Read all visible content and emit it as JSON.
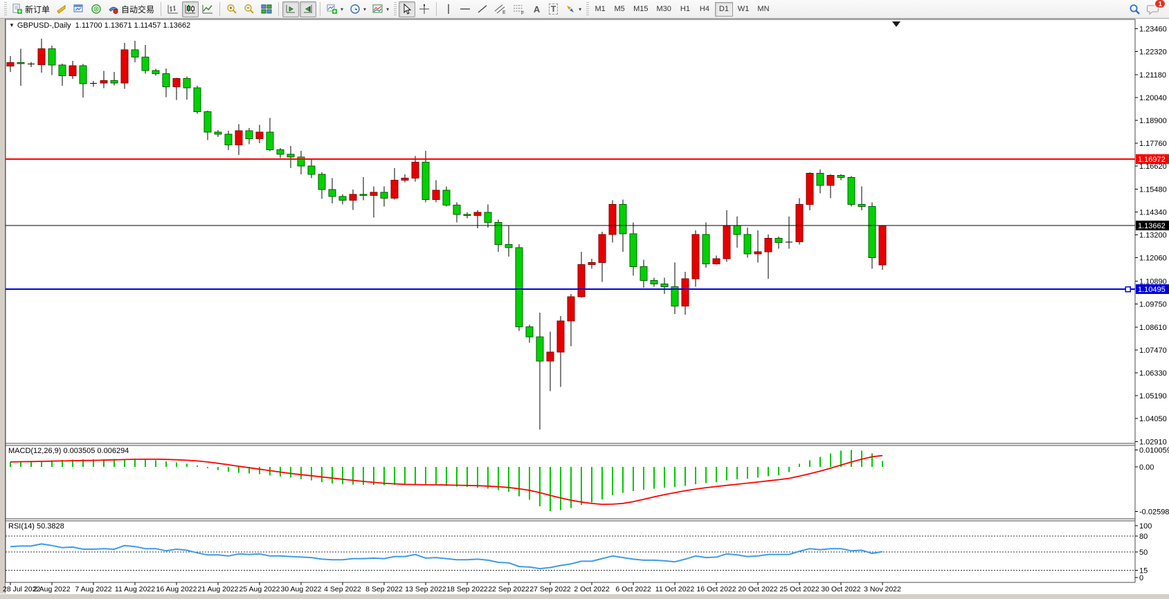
{
  "toolbar": {
    "new_order": "新订单",
    "autotrading": "自动交易",
    "text_tool": "A",
    "label_tool": "T",
    "channel_sub": "E",
    "fibo_sub": "F",
    "timeframes": [
      "M1",
      "M5",
      "M15",
      "M30",
      "H1",
      "H4",
      "D1",
      "W1",
      "MN"
    ],
    "active_timeframe": "D1",
    "notification_count": "1"
  },
  "chart_data": {
    "type": "candlestick",
    "symbol": "GBPUSD-",
    "period": "Daily",
    "title": "GBPUSD-,Daily",
    "ohlc_text": "1.11700 1.13671 1.11457 1.13662",
    "price_axis_labels": [
      "1.23460",
      "1.22320",
      "1.21180",
      "1.20040",
      "1.18900",
      "1.17760",
      "1.16620",
      "1.15480",
      "1.14340",
      "1.13200",
      "1.12060",
      "1.10890",
      "1.09750",
      "1.08610",
      "1.07470",
      "1.06330",
      "1.05190",
      "1.04050",
      "1.02910"
    ],
    "price_range": {
      "top": 1.2393,
      "bottom": 1.0285
    },
    "dates": [
      "28 Jul 2022",
      "2 Aug 2022",
      "7 Aug 2022",
      "11 Aug 2022",
      "16 Aug 2022",
      "21 Aug 2022",
      "25 Aug 2022",
      "30 Aug 2022",
      "4 Sep 2022",
      "8 Sep 2022",
      "13 Sep 2022",
      "18 Sep 2022",
      "22 Sep 2022",
      "27 Sep 2022",
      "2 Oct 2022",
      "6 Oct 2022",
      "11 Oct 2022",
      "16 Oct 2022",
      "20 Oct 2022",
      "25 Oct 2022",
      "30 Oct 2022",
      "3 Nov 2022"
    ],
    "bars_per_label": 4,
    "candles": [
      [
        1.216,
        1.221,
        1.2132,
        1.2178
      ],
      [
        1.2178,
        1.2246,
        1.2062,
        1.2172
      ],
      [
        1.2172,
        1.2182,
        1.2155,
        1.2168
      ],
      [
        1.2168,
        1.2297,
        1.2127,
        1.2246
      ],
      [
        1.2246,
        1.2262,
        1.2115,
        1.2166
      ],
      [
        1.2166,
        1.2172,
        1.2062,
        1.2112
      ],
      [
        1.2112,
        1.2186,
        1.2096,
        1.2162
      ],
      [
        1.2162,
        1.217,
        1.2003,
        1.2072
      ],
      [
        1.2072,
        1.2086,
        1.2058,
        1.2076
      ],
      [
        1.2076,
        1.2136,
        1.205,
        1.2088
      ],
      [
        1.2088,
        1.2132,
        1.2064,
        1.2076
      ],
      [
        1.2076,
        1.2276,
        1.2046,
        1.2242
      ],
      [
        1.2242,
        1.2286,
        1.218,
        1.2206
      ],
      [
        1.2206,
        1.2266,
        1.2122,
        1.2138
      ],
      [
        1.2138,
        1.2146,
        1.2112,
        1.2122
      ],
      [
        1.2122,
        1.2149,
        1.2006,
        1.2058
      ],
      [
        1.2058,
        1.2102,
        1.1992,
        1.2098
      ],
      [
        1.2098,
        1.2108,
        1.1994,
        1.2052
      ],
      [
        1.2052,
        1.2062,
        1.1922,
        1.1934
      ],
      [
        1.1934,
        1.1938,
        1.1792,
        1.1832
      ],
      [
        1.1832,
        1.1842,
        1.1808,
        1.1822
      ],
      [
        1.1822,
        1.1838,
        1.1742,
        1.1768
      ],
      [
        1.1768,
        1.1872,
        1.1718,
        1.1838
      ],
      [
        1.1838,
        1.1852,
        1.1772,
        1.1798
      ],
      [
        1.1798,
        1.1868,
        1.1776,
        1.1832
      ],
      [
        1.1832,
        1.1902,
        1.1736,
        1.1744
      ],
      [
        1.1744,
        1.1752,
        1.1702,
        1.1722
      ],
      [
        1.1722,
        1.1762,
        1.1652,
        1.1708
      ],
      [
        1.1708,
        1.1738,
        1.1622,
        1.1662
      ],
      [
        1.1662,
        1.1696,
        1.1602,
        1.1622
      ],
      [
        1.1622,
        1.1632,
        1.15,
        1.1546
      ],
      [
        1.1546,
        1.1602,
        1.1476,
        1.1512
      ],
      [
        1.1512,
        1.1522,
        1.1472,
        1.1492
      ],
      [
        1.1492,
        1.1546,
        1.1444,
        1.1522
      ],
      [
        1.1522,
        1.1608,
        1.1492,
        1.1516
      ],
      [
        1.1516,
        1.1562,
        1.1406,
        1.1532
      ],
      [
        1.1532,
        1.1562,
        1.1462,
        1.1502
      ],
      [
        1.1502,
        1.1652,
        1.1496,
        1.1592
      ],
      [
        1.1592,
        1.1622,
        1.1582,
        1.1602
      ],
      [
        1.1602,
        1.1712,
        1.1586,
        1.1682
      ],
      [
        1.1682,
        1.1738,
        1.1482,
        1.1496
      ],
      [
        1.1496,
        1.1592,
        1.1482,
        1.1542
      ],
      [
        1.1542,
        1.1562,
        1.1462,
        1.1468
      ],
      [
        1.1468,
        1.1482,
        1.1382,
        1.1422
      ],
      [
        1.1422,
        1.1432,
        1.1402,
        1.1416
      ],
      [
        1.1416,
        1.1442,
        1.1352,
        1.1432
      ],
      [
        1.1432,
        1.1472,
        1.1356,
        1.1382
      ],
      [
        1.1382,
        1.1396,
        1.1236,
        1.1272
      ],
      [
        1.1272,
        1.1366,
        1.1212,
        1.1256
      ],
      [
        1.1256,
        1.1274,
        1.0842,
        1.0862
      ],
      [
        1.0862,
        1.0872,
        1.0782,
        1.0812
      ],
      [
        1.0812,
        1.0932,
        1.035,
        1.0692
      ],
      [
        1.0692,
        1.0838,
        1.0542,
        1.0736
      ],
      [
        1.0736,
        1.0916,
        1.0562,
        1.0892
      ],
      [
        1.0892,
        1.1026,
        1.0766,
        1.1012
      ],
      [
        1.1012,
        1.1236,
        1.1006,
        1.1172
      ],
      [
        1.1172,
        1.1202,
        1.1152,
        1.1182
      ],
      [
        1.1182,
        1.1336,
        1.1086,
        1.1322
      ],
      [
        1.1322,
        1.1492,
        1.1282,
        1.1472
      ],
      [
        1.1472,
        1.1496,
        1.1236,
        1.1326
      ],
      [
        1.1326,
        1.1382,
        1.1116,
        1.1162
      ],
      [
        1.1162,
        1.1196,
        1.1056,
        1.1092
      ],
      [
        1.1092,
        1.1106,
        1.1062,
        1.1076
      ],
      [
        1.1076,
        1.1106,
        1.1026,
        1.1062
      ],
      [
        1.1062,
        1.1182,
        1.0926,
        1.0966
      ],
      [
        1.0966,
        1.1136,
        1.0922,
        1.1102
      ],
      [
        1.1102,
        1.1342,
        1.1062,
        1.1322
      ],
      [
        1.1322,
        1.1382,
        1.1156,
        1.1176
      ],
      [
        1.1176,
        1.1216,
        1.1172,
        1.1202
      ],
      [
        1.1202,
        1.1442,
        1.1186,
        1.1366
      ],
      [
        1.1366,
        1.1412,
        1.1256,
        1.1322
      ],
      [
        1.1322,
        1.1356,
        1.1206,
        1.1226
      ],
      [
        1.1226,
        1.1342,
        1.1182,
        1.1236
      ],
      [
        1.1236,
        1.1322,
        1.1102,
        1.1302
      ],
      [
        1.1302,
        1.1312,
        1.1252,
        1.1282
      ],
      [
        1.1282,
        1.1412,
        1.1252,
        1.1286
      ],
      [
        1.1286,
        1.1502,
        1.1272,
        1.1472
      ],
      [
        1.1472,
        1.1632,
        1.1442,
        1.1626
      ],
      [
        1.1626,
        1.1646,
        1.1526,
        1.1566
      ],
      [
        1.1566,
        1.1622,
        1.1502,
        1.1616
      ],
      [
        1.1616,
        1.1622,
        1.1592,
        1.1606
      ],
      [
        1.1606,
        1.1612,
        1.1462,
        1.1472
      ],
      [
        1.1472,
        1.1562,
        1.1442,
        1.1462
      ],
      [
        1.1462,
        1.1482,
        1.1152,
        1.1206
      ],
      [
        1.117,
        1.13671,
        1.11457,
        1.13662
      ]
    ],
    "hlines": [
      {
        "price": 1.16972,
        "label": "1.16972",
        "color": "#ff0000",
        "width": 2,
        "name": "resistance-line",
        "handle": false
      },
      {
        "price": 1.13662,
        "label": "1.13662",
        "color": "#000000",
        "width": 1,
        "name": "current-price-line",
        "handle": false
      },
      {
        "price": 1.10495,
        "label": "1.10495",
        "color": "#0000e1",
        "width": 2,
        "name": "support-line",
        "handle": true
      }
    ],
    "macd": {
      "label": "MACD(12,26,9)",
      "values_text": "0.003505 0.006294",
      "main_value": 0.003505,
      "signal_value": 0.006294,
      "signal_period": 9,
      "axis_labels": [
        "0.010059",
        "0.00",
        "-0.025987"
      ],
      "range": {
        "top": 0.0122,
        "bottom": -0.0302
      },
      "hist": [
        0.003,
        0.0032,
        0.0034,
        0.0036,
        0.004,
        0.0042,
        0.0044,
        0.0045,
        0.0046,
        0.0046,
        0.0047,
        0.0048,
        0.0048,
        0.0046,
        0.004,
        0.0034,
        0.0028,
        0.002,
        0.0008,
        -0.0008,
        -0.0018,
        -0.0028,
        -0.0034,
        -0.0038,
        -0.0042,
        -0.005,
        -0.0056,
        -0.0062,
        -0.007,
        -0.0078,
        -0.0088,
        -0.0096,
        -0.01,
        -0.0102,
        -0.0104,
        -0.0105,
        -0.0106,
        -0.0105,
        -0.0104,
        -0.0102,
        -0.0104,
        -0.0106,
        -0.011,
        -0.0114,
        -0.0116,
        -0.012,
        -0.0126,
        -0.0134,
        -0.0144,
        -0.017,
        -0.019,
        -0.023,
        -0.0258,
        -0.0252,
        -0.024,
        -0.0222,
        -0.0208,
        -0.0188,
        -0.0164,
        -0.015,
        -0.014,
        -0.0132,
        -0.0126,
        -0.012,
        -0.0116,
        -0.011,
        -0.01,
        -0.0094,
        -0.0088,
        -0.0078,
        -0.0072,
        -0.0068,
        -0.0062,
        -0.0054,
        -0.0048,
        -0.003,
        0.002,
        0.004,
        0.006,
        0.008,
        0.0095,
        0.01,
        0.0095,
        0.008,
        0.0035
      ]
    },
    "rsi": {
      "label": "RSI(14)",
      "value_text": "50.3828",
      "value": 50.3828,
      "levels": [
        80,
        50,
        15
      ],
      "axis_labels": [
        "100",
        "80",
        "50",
        "15",
        "0"
      ],
      "range": {
        "top": 109,
        "bottom": -3
      },
      "series": [
        60,
        61,
        61,
        65,
        62,
        58,
        59,
        55,
        55,
        56,
        55,
        62,
        60,
        56,
        56,
        52,
        55,
        53,
        48,
        44,
        44,
        42,
        46,
        45,
        46,
        42,
        42,
        41,
        40,
        39,
        36,
        35,
        35,
        37,
        37,
        38,
        37,
        41,
        41,
        45,
        38,
        39,
        37,
        35,
        35,
        36,
        34,
        30,
        29,
        22,
        21,
        18,
        20,
        24,
        27,
        32,
        32,
        37,
        42,
        39,
        36,
        34,
        34,
        33,
        31,
        36,
        42,
        39,
        40,
        46,
        44,
        41,
        42,
        45,
        45,
        45,
        51,
        56,
        54,
        56,
        56,
        52,
        53,
        47,
        50.38
      ]
    },
    "colors": {
      "up": "#e60000",
      "up_border": "#8b0000",
      "down": "#00d200",
      "down_border": "#005f00",
      "wick": "#000000",
      "macd_hist": "#00c800",
      "macd_signal": "#ff0000",
      "rsi_line": "#3e9be9",
      "level_dash": "#333333",
      "border": "#4a4a4a"
    }
  }
}
